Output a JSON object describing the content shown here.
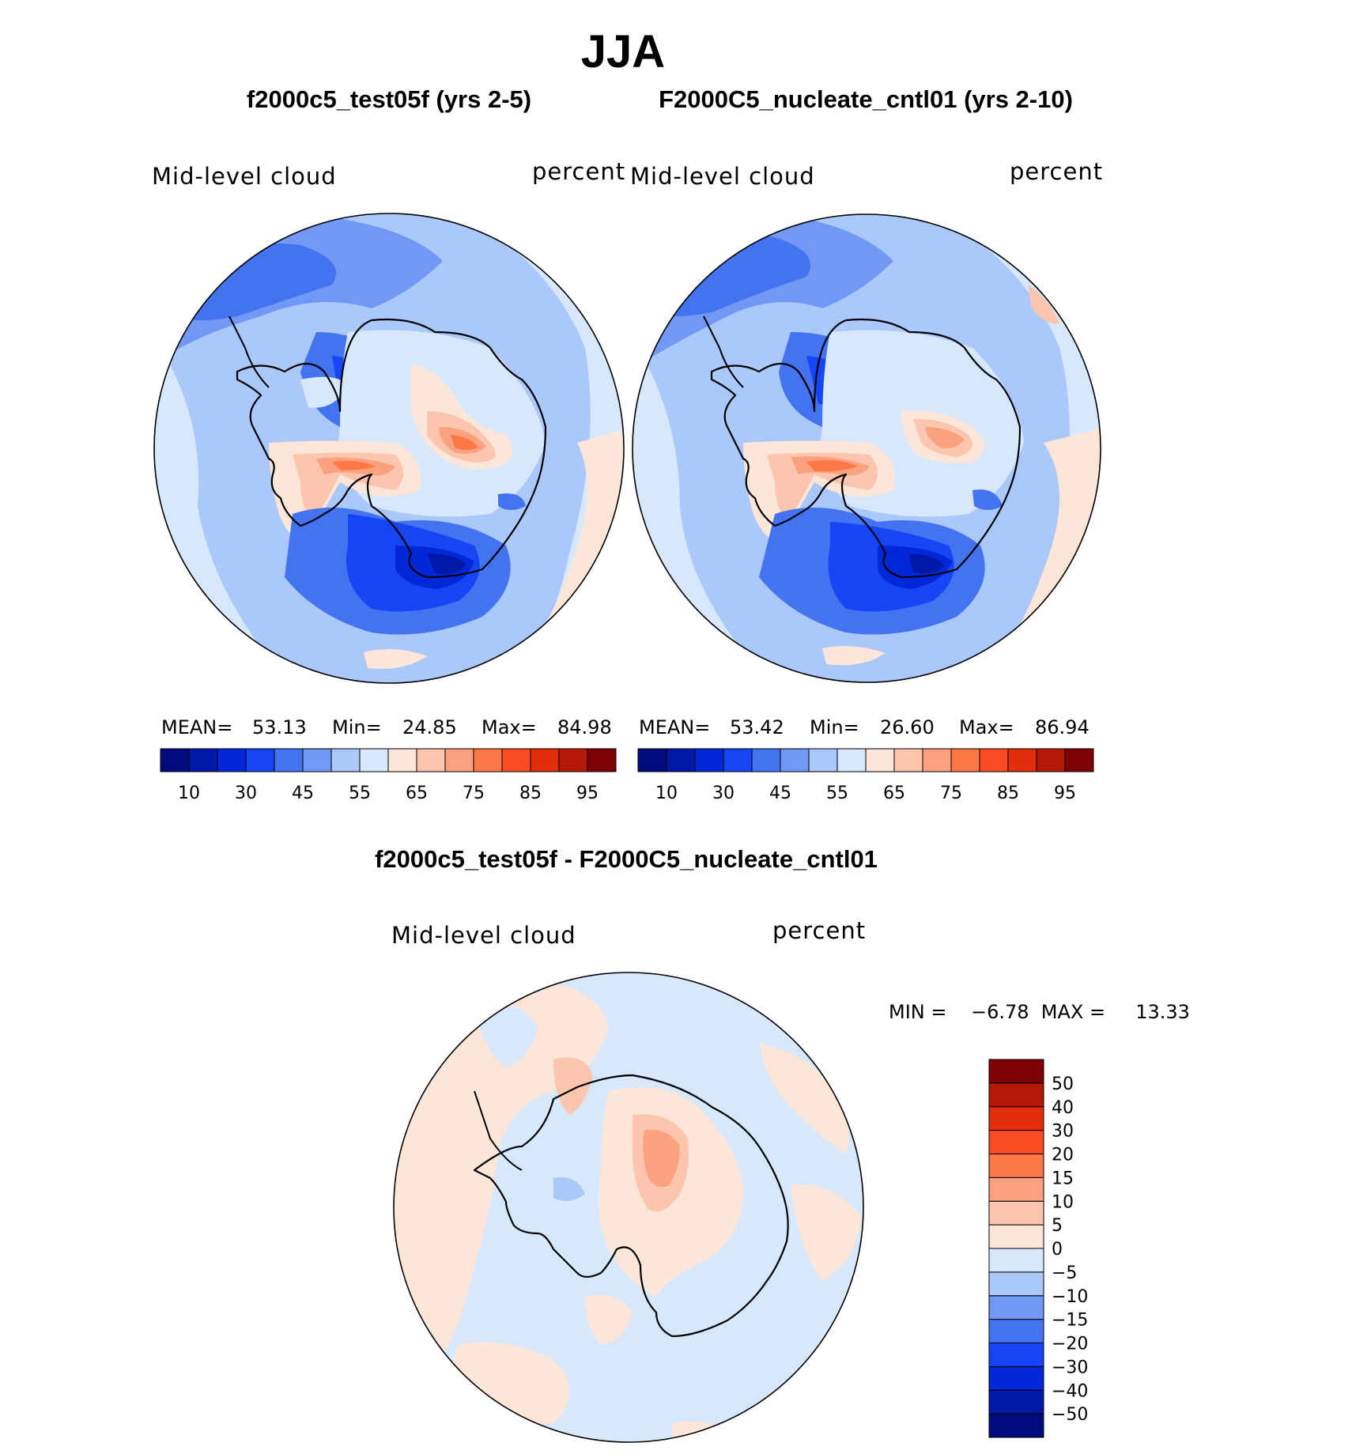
{
  "title": "JJA",
  "panels": [
    {
      "id": "test",
      "title": "f2000c5_test05f (yrs 2-5)",
      "variable": "Mid-level cloud",
      "units": "percent",
      "stats": {
        "mean_label": "MEAN=",
        "mean": "53.13",
        "min_label": "Min=",
        "min": "24.85",
        "max_label": "Max=",
        "max": "84.98"
      }
    },
    {
      "id": "cntl",
      "title": "F2000C5_nucleate_cntl01 (yrs 2-10)",
      "variable": "Mid-level cloud",
      "units": "percent",
      "stats": {
        "mean_label": "MEAN=",
        "mean": "53.42",
        "min_label": "Min=",
        "min": "26.60",
        "max_label": "Max=",
        "max": "86.94"
      }
    }
  ],
  "diff": {
    "title": "f2000c5_test05f - F2000C5_nucleate_cntl01",
    "variable": "Mid-level cloud",
    "units": "percent",
    "minmax_text": "MIN =    −6.78  MAX =     13.33"
  },
  "colorbar_main": {
    "colors": [
      "#000c7d",
      "#0018a8",
      "#0028d8",
      "#1645f6",
      "#4373f1",
      "#7198f5",
      "#aac8fa",
      "#d8e8fc",
      "#fce6d8",
      "#fcc5ad",
      "#fca17e",
      "#fc7846",
      "#fc4d22",
      "#e32e0c",
      "#b51905",
      "#7e0105"
    ],
    "tick_labels": [
      "10",
      "30",
      "45",
      "55",
      "65",
      "75",
      "85",
      "95"
    ]
  },
  "colorbar_diff": {
    "colors": [
      "#000c7d",
      "#0018a8",
      "#0028d8",
      "#1645f6",
      "#4373f1",
      "#7198f5",
      "#aac8fa",
      "#d8e8fc",
      "#fce6d8",
      "#fcc5ad",
      "#fca17e",
      "#fc7846",
      "#fc4d22",
      "#e32e0c",
      "#b51905",
      "#7e0105"
    ],
    "tick_labels": [
      "−50",
      "−40",
      "−30",
      "−20",
      "−15",
      "−10",
      "−5",
      "0",
      "5",
      "10",
      "15",
      "20",
      "30",
      "40",
      "50"
    ]
  }
}
